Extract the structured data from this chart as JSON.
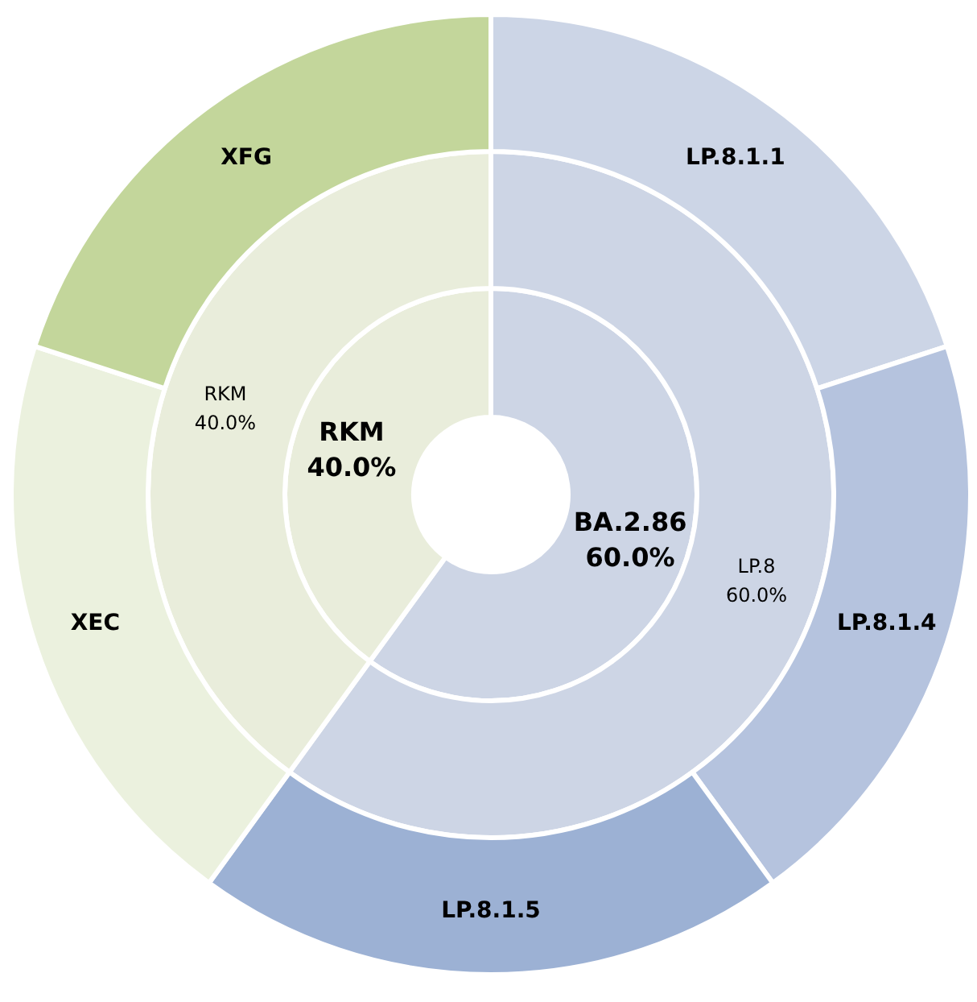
{
  "chart_data": [
    {
      "type": "donut",
      "categories": [
        "BA.2.86",
        "RKM"
      ],
      "values": [
        60,
        40
      ],
      "value_labels": [
        "60.0%",
        "40.0%"
      ],
      "colors": [
        "#cdd5e5",
        "#e9eddb"
      ]
    },
    {
      "type": "donut",
      "categories": [
        "LP.8",
        "RKM"
      ],
      "values": [
        60,
        40
      ],
      "value_labels": [
        "60.0%",
        "40.0%"
      ],
      "colors": [
        "#cdd5e5",
        "#e9eddb"
      ]
    },
    {
      "type": "donut",
      "categories": [
        "LP.8.1.1",
        "LP.8.1.4",
        "LP.8.1.5",
        "XEC",
        "XFG"
      ],
      "values": [
        20,
        20,
        20,
        20,
        20
      ],
      "colors": [
        "#ccd5e6",
        "#b5c3de",
        "#9cb1d4",
        "#ebf1de",
        "#c3d69b"
      ]
    }
  ]
}
